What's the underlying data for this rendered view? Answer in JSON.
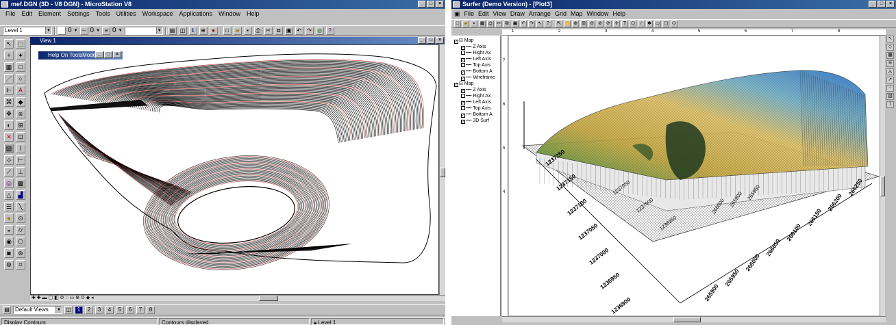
{
  "microstation": {
    "title": "mef.DGN (3D - V8 DGN) - MicroStation V8",
    "menu": [
      "File",
      "Edit",
      "Element",
      "Settings",
      "Tools",
      "Utilities",
      "Workspace",
      "Applications",
      "Window",
      "Help"
    ],
    "level_combo": "Level 1",
    "color_value": "0",
    "style_value": "0",
    "weight_value": "0",
    "view_title": "View 1",
    "help_title": "Help On ToolsModels",
    "views_combo": "Default Views",
    "view_numbers": [
      "1",
      "2",
      "3",
      "4",
      "5",
      "6",
      "7",
      "8"
    ],
    "status_left": "Display Contours",
    "status_mid": "Contours displayed.",
    "status_level": "Level 1"
  },
  "surfer": {
    "title": "Surfer (Demo Version) - [Plot3]",
    "menu": [
      "File",
      "Edit",
      "View",
      "Draw",
      "Arrange",
      "Grid",
      "Map",
      "Window",
      "Help"
    ],
    "tree": [
      {
        "label": "Map",
        "indent": 0,
        "checked": true
      },
      {
        "label": "Z Axis",
        "indent": 1,
        "checked": true
      },
      {
        "label": "Right Ax",
        "indent": 1,
        "checked": false
      },
      {
        "label": "Left Axis",
        "indent": 1,
        "checked": true
      },
      {
        "label": "Top Axis",
        "indent": 1,
        "checked": false
      },
      {
        "label": "Bottom A",
        "indent": 1,
        "checked": true
      },
      {
        "label": "Wireframe",
        "indent": 1,
        "checked": true
      },
      {
        "label": "Map",
        "indent": 0,
        "checked": true
      },
      {
        "label": "Z Axis",
        "indent": 1,
        "checked": true
      },
      {
        "label": "Right Ax",
        "indent": 1,
        "checked": false
      },
      {
        "label": "Left Axis",
        "indent": 1,
        "checked": true
      },
      {
        "label": "Top Axis",
        "indent": 1,
        "checked": false
      },
      {
        "label": "Bottom A",
        "indent": 1,
        "checked": true
      },
      {
        "label": "3D Surf",
        "indent": 1,
        "checked": true
      }
    ],
    "ruler_top": [
      "1",
      "2",
      "3",
      "4",
      "5",
      "6",
      "7",
      "8"
    ],
    "ruler_left": [
      "7",
      "6",
      "5",
      "4"
    ],
    "y_axis_labels": [
      "1237250",
      "1237150",
      "1237100",
      "1237050",
      "1237000",
      "1236950",
      "1236900"
    ],
    "y_axis_labels_back": [
      "1237050",
      "1237000",
      "1236950"
    ],
    "x_axis_labels": [
      "265900",
      "265950",
      "266000",
      "266050",
      "266100",
      "266150",
      "266200",
      "266250"
    ],
    "x_axis_labels_back": [
      "266000",
      "265900",
      "265950"
    ]
  }
}
